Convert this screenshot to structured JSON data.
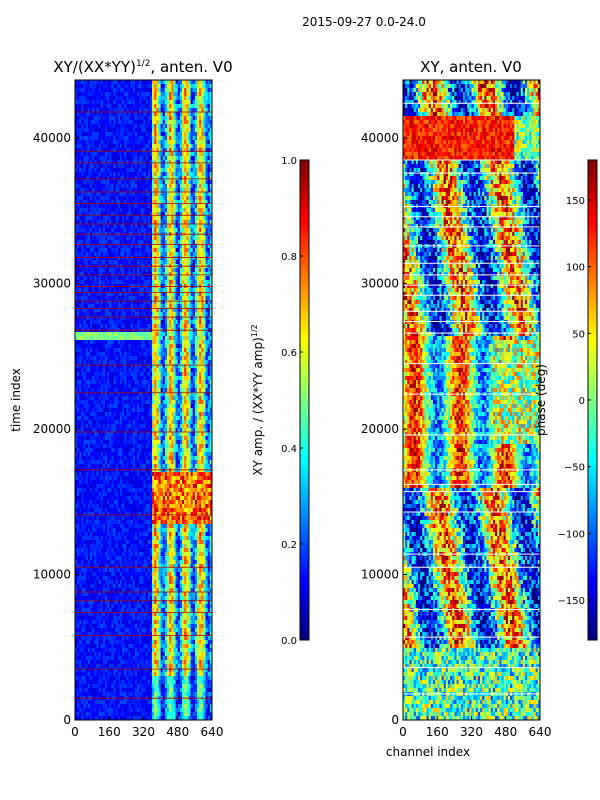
{
  "figure_title": "2015-09-27 0.0-24.0",
  "chart_data": [
    {
      "type": "heatmap",
      "title": "XY/(XX*YY)",
      "title_sup": "1/2",
      "title_suffix": ", anten. V0",
      "xlabel": "",
      "ylabel": "time index",
      "xlim": [
        0,
        640
      ],
      "ylim": [
        0,
        44000
      ],
      "xticks": [
        0,
        160,
        320,
        480,
        640
      ],
      "yticks": [
        0,
        10000,
        20000,
        30000,
        40000
      ],
      "colorbar": {
        "label": "XY amp. / (XX*YY amp)",
        "label_sup": "1/2",
        "range": [
          0.0,
          1.0
        ],
        "ticks": [
          "0.0",
          "0.2",
          "0.4",
          "0.6",
          "0.8",
          "1.0"
        ],
        "colormap": "jet"
      }
    },
    {
      "type": "heatmap",
      "title": "XY, anten. V0",
      "xlabel": "channel index",
      "ylabel": "",
      "xlim": [
        0,
        640
      ],
      "ylim": [
        0,
        44000
      ],
      "xticks": [
        0,
        160,
        320,
        480,
        640
      ],
      "yticks": [
        0,
        10000,
        20000,
        30000,
        40000
      ],
      "colorbar": {
        "label": "phase (deg)",
        "range": [
          -180,
          180
        ],
        "ticks": [
          "−150",
          "−100",
          "−50",
          "0",
          "50",
          "100",
          "150"
        ],
        "colormap": "jet"
      }
    }
  ],
  "colors": {
    "jet": [
      "#00007f",
      "#0000ff",
      "#007fff",
      "#00ffff",
      "#7fff7f",
      "#ffff00",
      "#ff7f00",
      "#ff0000",
      "#7f0000"
    ],
    "axis": "#000000",
    "flag_line": "#b00000",
    "gap_line": "#ffffff"
  }
}
